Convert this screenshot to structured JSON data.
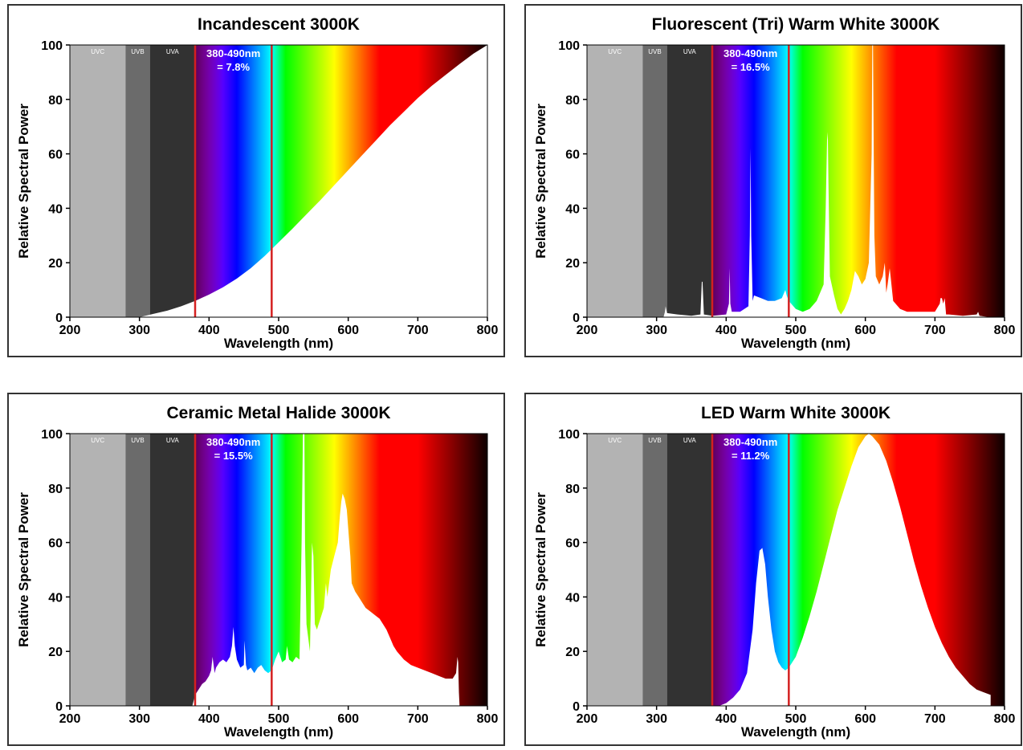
{
  "colors": {
    "uvc": "#b3b3b3",
    "uvb": "#6b6b6b",
    "uva": "#323232",
    "marker": "#d42020",
    "fill": "#ffffff"
  },
  "chart_data": [
    {
      "type": "area",
      "title": "Incandescent 3000K",
      "xlabel": "Wavelength (nm)",
      "ylabel": "Relative Spectral Power",
      "xlim": [
        200,
        800
      ],
      "ylim": [
        0,
        100
      ],
      "xticks": [
        "200",
        "300",
        "400",
        "500",
        "600",
        "700",
        "800"
      ],
      "yticks": [
        "0",
        "20",
        "40",
        "60",
        "80",
        "100"
      ],
      "bands": [
        {
          "label": "UVC",
          "x0": 200,
          "x1": 280
        },
        {
          "label": "UVB",
          "x0": 280,
          "x1": 315
        },
        {
          "label": "UVA",
          "x0": 315,
          "x1": 380
        }
      ],
      "markers": [
        380,
        490
      ],
      "annotation": {
        "line1": "380-490nm",
        "line2": "= 7.8%"
      },
      "series": [
        {
          "x": [
            300,
            320,
            340,
            360,
            380,
            400,
            420,
            440,
            460,
            480,
            500,
            520,
            540,
            560,
            580,
            600,
            620,
            640,
            660,
            680,
            700,
            720,
            740,
            760,
            780,
            800
          ],
          "y": [
            0,
            1.2,
            2.4,
            4.0,
            6.0,
            8.3,
            11.0,
            14.2,
            18.0,
            22.5,
            27.5,
            32.5,
            37.8,
            43.0,
            48.5,
            54.0,
            59.5,
            65.0,
            70.5,
            75.5,
            80.5,
            85.0,
            89.0,
            93.0,
            96.8,
            100
          ]
        }
      ]
    },
    {
      "type": "area",
      "title": "Fluorescent (Tri) Warm White 3000K",
      "xlabel": "Wavelength (nm)",
      "ylabel": "Relative Spectral Power",
      "xlim": [
        200,
        800
      ],
      "ylim": [
        0,
        100
      ],
      "xticks": [
        "200",
        "300",
        "400",
        "500",
        "600",
        "700",
        "800"
      ],
      "yticks": [
        "0",
        "20",
        "40",
        "60",
        "80",
        "100"
      ],
      "bands": [
        {
          "label": "UVC",
          "x0": 200,
          "x1": 280
        },
        {
          "label": "UVB",
          "x0": 280,
          "x1": 315
        },
        {
          "label": "UVA",
          "x0": 315,
          "x1": 380
        }
      ],
      "markers": [
        380,
        490
      ],
      "annotation": {
        "line1": "380-490nm",
        "line2": "= 16.5%"
      },
      "series": [
        {
          "x": [
            310,
            312,
            313,
            315,
            330,
            350,
            363,
            365,
            366,
            368,
            380,
            400,
            404,
            405,
            406,
            408,
            420,
            432,
            434,
            435,
            436,
            438,
            440,
            450,
            460,
            470,
            480,
            485,
            487,
            490,
            500,
            510,
            520,
            530,
            540,
            543,
            545,
            546,
            547,
            549,
            555,
            560,
            565,
            570,
            575,
            580,
            585,
            590,
            595,
            600,
            605,
            609,
            610,
            611,
            612,
            613,
            615,
            620,
            625,
            628,
            630,
            632,
            635,
            640,
            650,
            660,
            680,
            700,
            707,
            708,
            710,
            712,
            714,
            716,
            720,
            740,
            760,
            762,
            764,
            770,
            780
          ],
          "y": [
            0,
            2,
            4,
            1.5,
            1,
            0.5,
            1,
            13,
            13,
            1,
            0.5,
            1,
            5,
            18,
            5,
            2,
            2,
            4,
            30,
            62,
            30,
            6,
            8,
            7,
            6,
            6,
            7,
            10,
            8,
            6,
            3,
            2,
            3,
            6,
            12,
            40,
            65,
            68,
            50,
            15,
            8,
            3,
            1,
            3,
            6,
            10,
            17,
            15,
            12,
            14,
            20,
            60,
            100,
            100,
            60,
            30,
            15,
            12,
            15,
            20,
            9,
            12,
            18,
            6,
            3,
            2,
            2,
            2,
            5,
            7,
            7,
            5,
            7,
            1,
            1,
            0.5,
            1,
            2,
            0.5,
            0.3,
            0
          ]
        }
      ]
    },
    {
      "type": "area",
      "title": "Ceramic Metal Halide 3000K",
      "xlabel": "Wavelength (nm)",
      "ylabel": "Relative Spectral Power",
      "xlim": [
        200,
        800
      ],
      "ylim": [
        0,
        100
      ],
      "xticks": [
        "200",
        "300",
        "400",
        "500",
        "600",
        "700",
        "800"
      ],
      "yticks": [
        "0",
        "20",
        "40",
        "60",
        "80",
        "100"
      ],
      "bands": [
        {
          "label": "UVC",
          "x0": 200,
          "x1": 280
        },
        {
          "label": "UVB",
          "x0": 280,
          "x1": 315
        },
        {
          "label": "UVA",
          "x0": 315,
          "x1": 380
        }
      ],
      "markers": [
        380,
        490
      ],
      "annotation": {
        "line1": "380-490nm",
        "line2": "= 15.5%"
      },
      "series": [
        {
          "x": [
            376,
            380,
            385,
            390,
            395,
            400,
            403,
            405,
            408,
            410,
            415,
            420,
            425,
            430,
            433,
            435,
            437,
            440,
            445,
            450,
            451,
            453,
            455,
            460,
            465,
            470,
            475,
            480,
            485,
            490,
            495,
            500,
            505,
            510,
            512,
            515,
            520,
            525,
            530,
            533,
            535,
            536,
            537,
            538,
            540,
            545,
            548,
            550,
            552,
            555,
            560,
            565,
            568,
            570,
            575,
            580,
            585,
            588,
            590,
            592,
            595,
            598,
            600,
            603,
            605,
            610,
            615,
            620,
            625,
            630,
            635,
            640,
            645,
            650,
            655,
            660,
            665,
            670,
            680,
            690,
            700,
            710,
            720,
            730,
            740,
            750,
            755,
            757,
            758,
            759,
            760
          ],
          "y": [
            0,
            4,
            6,
            8,
            9,
            11,
            13,
            18,
            12,
            14,
            16,
            17,
            16,
            18,
            22,
            29,
            22,
            17,
            14,
            15,
            24,
            15,
            13,
            14,
            12,
            14,
            15,
            13,
            12,
            13,
            17,
            20,
            16,
            17,
            22,
            17,
            16,
            18,
            17,
            60,
            100,
            100,
            100,
            60,
            30,
            20,
            60,
            55,
            30,
            28,
            32,
            36,
            45,
            40,
            50,
            55,
            60,
            70,
            75,
            78,
            76,
            72,
            65,
            55,
            45,
            42,
            40,
            38,
            36,
            35,
            34,
            33,
            32,
            30,
            28,
            25,
            22,
            20,
            17,
            15,
            14,
            13,
            12,
            11,
            10,
            10,
            12,
            18,
            16,
            5,
            0
          ]
        }
      ]
    },
    {
      "type": "area",
      "title": "LED Warm White 3000K",
      "xlabel": "Wavelength (nm)",
      "ylabel": "Relative Spectral Power",
      "xlim": [
        200,
        800
      ],
      "ylim": [
        0,
        100
      ],
      "xticks": [
        "200",
        "300",
        "400",
        "500",
        "600",
        "700",
        "800"
      ],
      "yticks": [
        "0",
        "20",
        "40",
        "60",
        "80",
        "100"
      ],
      "bands": [
        {
          "label": "UVC",
          "x0": 200,
          "x1": 280
        },
        {
          "label": "UVB",
          "x0": 280,
          "x1": 315
        },
        {
          "label": "UVA",
          "x0": 315,
          "x1": 380
        }
      ],
      "markers": [
        380,
        490
      ],
      "annotation": {
        "line1": "380-490nm",
        "line2": "= 11.2%"
      },
      "series": [
        {
          "x": [
            390,
            400,
            410,
            420,
            430,
            438,
            443,
            448,
            452,
            456,
            460,
            465,
            470,
            475,
            480,
            485,
            490,
            500,
            510,
            520,
            530,
            540,
            550,
            560,
            570,
            580,
            590,
            600,
            605,
            610,
            620,
            630,
            640,
            650,
            660,
            670,
            680,
            690,
            700,
            710,
            720,
            730,
            740,
            750,
            760,
            770,
            780
          ],
          "y": [
            0,
            1,
            3,
            6,
            12,
            28,
            45,
            57,
            58,
            52,
            40,
            28,
            20,
            16,
            14,
            13,
            14,
            18,
            25,
            33,
            42,
            52,
            62,
            72,
            80,
            88,
            95,
            99,
            100,
            99,
            96,
            90,
            82,
            73,
            63,
            53,
            44,
            36,
            29,
            23,
            18,
            14,
            11,
            8,
            6,
            5,
            4
          ]
        }
      ]
    }
  ]
}
